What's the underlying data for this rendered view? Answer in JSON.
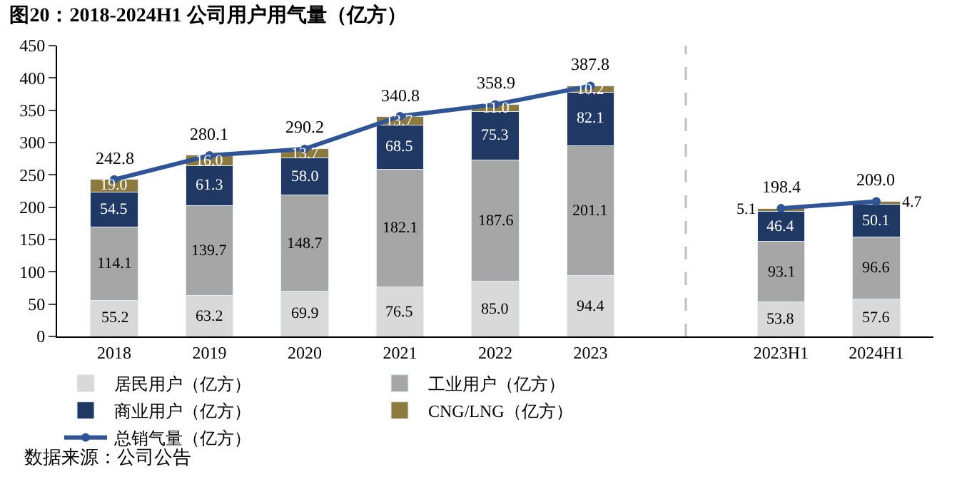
{
  "chart_data": {
    "type": "bar",
    "title": "图20：2018-2024H1 公司用户用气量（亿方）",
    "categories": [
      "2018",
      "2019",
      "2020",
      "2021",
      "2022",
      "2023",
      null,
      "2023H1",
      "2024H1"
    ],
    "stacked": true,
    "legend": "bottom",
    "ylim": [
      0,
      450
    ],
    "yticks": [
      0,
      50,
      100,
      150,
      200,
      250,
      300,
      350,
      400,
      450
    ],
    "series": [
      {
        "name": "居民用户（亿方）",
        "color": "#d9d9d9",
        "values": [
          55.2,
          63.2,
          69.9,
          76.5,
          85.0,
          94.4,
          null,
          53.8,
          57.6
        ],
        "value_labels": [
          "55.2",
          "63.2",
          "69.9",
          "76.5",
          "85.0",
          "94.4",
          null,
          "53.8",
          "57.6"
        ]
      },
      {
        "name": "工业用户（亿方）",
        "color": "#a6a6a6",
        "values": [
          114.1,
          139.7,
          148.7,
          182.1,
          187.6,
          201.1,
          null,
          93.1,
          96.6
        ],
        "value_labels": [
          "114.1",
          "139.7",
          "148.7",
          "182.1",
          "187.6",
          "201.1",
          null,
          "93.1",
          "96.6"
        ]
      },
      {
        "name": "商业用户（亿方）",
        "color": "#1f3864",
        "values": [
          54.5,
          61.3,
          58.0,
          68.5,
          75.3,
          82.1,
          null,
          46.4,
          50.1
        ],
        "value_labels": [
          "54.5",
          "61.3",
          "58.0",
          "68.5",
          "75.3",
          "82.1",
          null,
          "46.4",
          "50.1"
        ]
      },
      {
        "name": "CNG/LNG（亿方）",
        "color": "#8c7a3e",
        "values": [
          19.0,
          16.0,
          13.7,
          13.7,
          11.0,
          10.2,
          null,
          5.1,
          4.7
        ],
        "value_labels": [
          "19.0",
          "16.0",
          "13.7",
          "13.7",
          "11.0",
          "10.2",
          null,
          "5.1",
          "4.7"
        ]
      },
      {
        "name": "总销气量（亿方）",
        "type": "line",
        "color": "#2f5597",
        "marker": "circle",
        "values": [
          242.8,
          280.1,
          290.2,
          340.8,
          358.9,
          387.8,
          null,
          198.4,
          209.0
        ],
        "value_labels": [
          "242.8",
          "280.1",
          "290.2",
          "340.8",
          "358.9",
          "387.8",
          null,
          "198.4",
          "209.0"
        ]
      }
    ],
    "annotations": [
      "数据来源：公司公告"
    ]
  }
}
